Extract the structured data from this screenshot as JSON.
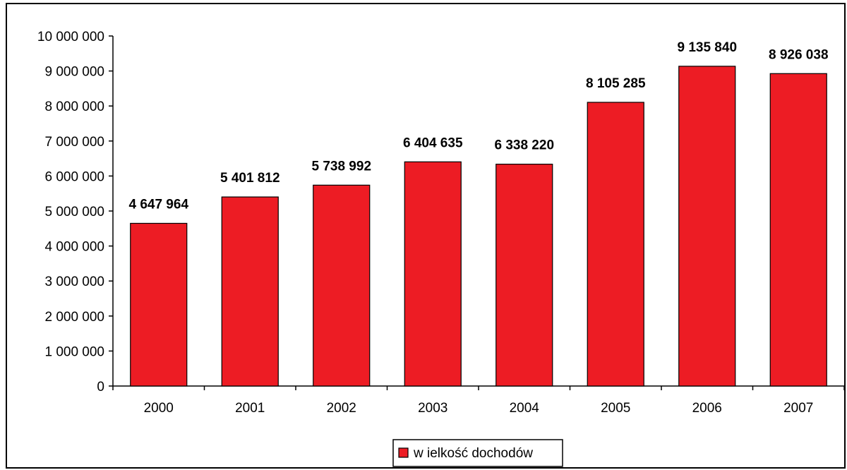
{
  "chart_data": {
    "type": "bar",
    "categories": [
      "2000",
      "2001",
      "2002",
      "2003",
      "2004",
      "2005",
      "2006",
      "2007"
    ],
    "series": [
      {
        "name": "w ielkość dochodów",
        "values": [
          4647964,
          5401812,
          5738992,
          6404635,
          6338220,
          8105285,
          9135840,
          8926038
        ],
        "labels": [
          "4 647 964",
          "5 401 812",
          "5 738 992",
          "6 404 635",
          "6 338 220",
          "8 105 285",
          "9 135 840",
          "8 926 038"
        ],
        "color": "#ED1C24"
      }
    ],
    "y_ticks": [
      "0",
      "1 000 000",
      "2 000 000",
      "3 000 000",
      "4 000 000",
      "5 000 000",
      "6 000 000",
      "7 000 000",
      "8 000 000",
      "9 000 000",
      "10 000 000"
    ],
    "ylim": [
      0,
      10000000
    ],
    "grid": false,
    "legend_position": "bottom",
    "title": "",
    "xlabel": "",
    "ylabel": ""
  }
}
